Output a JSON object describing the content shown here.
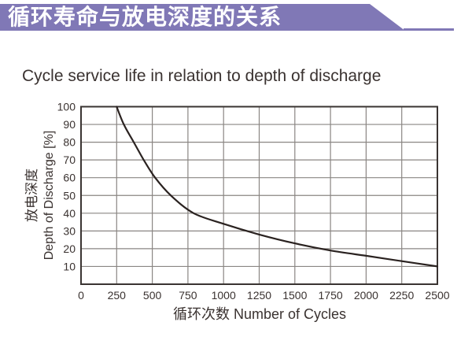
{
  "banner": {
    "title": "循环寿命与放电深度的关系",
    "bg_color": "#8078b6",
    "text_color": "#ffffff"
  },
  "chart_data": {
    "type": "line",
    "title": "Cycle service life in relation to depth of discharge",
    "xlabel": "循环次数 Number of Cycles",
    "ylabel_zh": "放电深度",
    "ylabel_en": "Depth of Discharge [%]",
    "xlim": [
      0,
      2500
    ],
    "ylim": [
      0,
      100
    ],
    "x_ticks": [
      0,
      250,
      500,
      750,
      1000,
      1250,
      1500,
      1750,
      2000,
      2250,
      2500
    ],
    "y_ticks": [
      10,
      20,
      30,
      40,
      50,
      60,
      70,
      80,
      90,
      100
    ],
    "grid": true,
    "legend": false,
    "series": [
      {
        "name": "depth-of-discharge-vs-cycles",
        "points": [
          [
            250,
            100
          ],
          [
            300,
            90
          ],
          [
            370,
            80
          ],
          [
            440,
            70
          ],
          [
            520,
            60
          ],
          [
            630,
            50
          ],
          [
            790,
            40
          ],
          [
            1000,
            34
          ],
          [
            1250,
            28
          ],
          [
            1500,
            23
          ],
          [
            1750,
            19
          ],
          [
            2000,
            16
          ],
          [
            2250,
            13
          ],
          [
            2500,
            10
          ]
        ]
      }
    ],
    "colors": {
      "line": "#2a2220",
      "grid": "#8a8683",
      "border": "#3a3432",
      "tick_text": "#3a3230"
    }
  }
}
